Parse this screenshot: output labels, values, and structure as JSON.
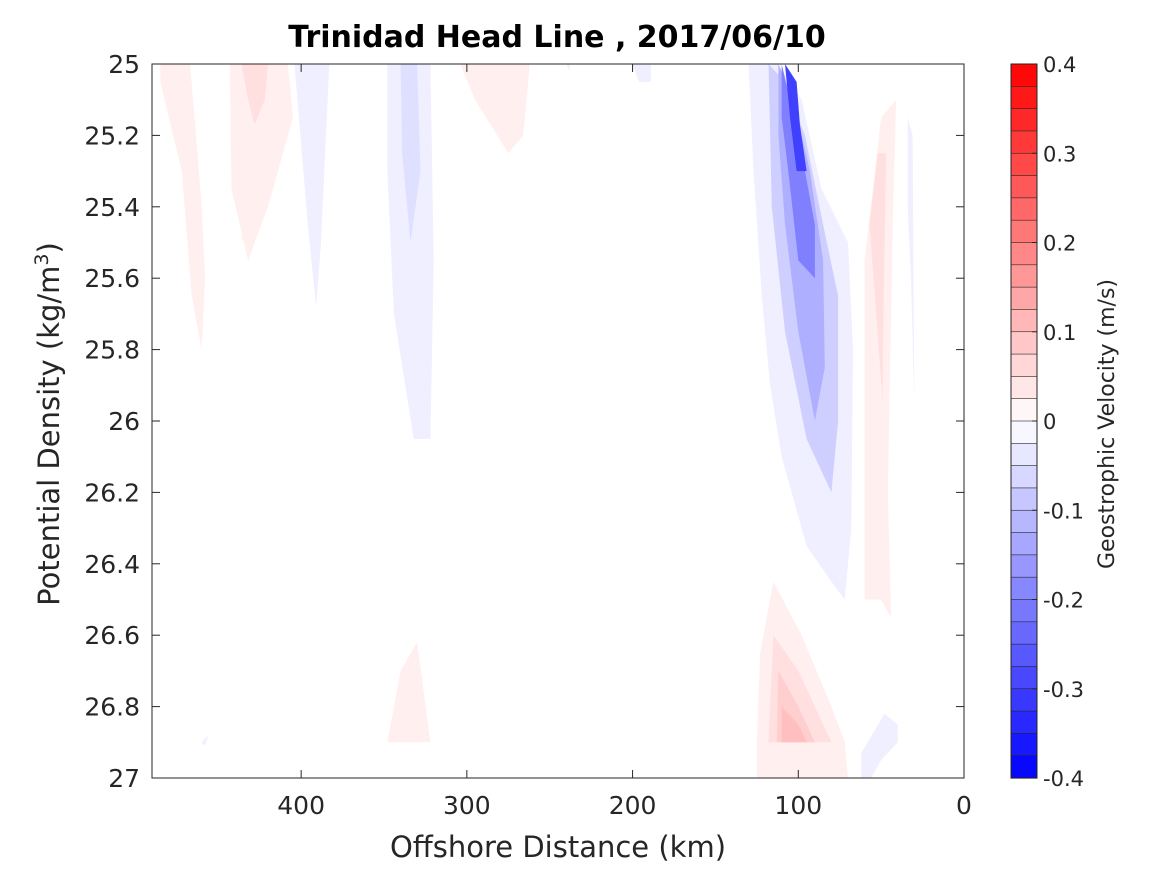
{
  "chart_data": {
    "type": "heatmap",
    "title": "Trinidad Head Line , 2017/06/10",
    "xlabel": "Offshore Distance (km)",
    "ylabel_main": "Potential Density (kg/m",
    "ylabel_sup": "3",
    "ylabel_close": ")",
    "xlim": [
      490,
      0
    ],
    "ylim": [
      25,
      27
    ],
    "x_ticks": [
      400,
      300,
      200,
      100,
      0
    ],
    "x_tick_labels": [
      "400",
      "300",
      "200",
      "100",
      "0"
    ],
    "y_ticks": [
      25,
      25.2,
      25.4,
      25.6,
      25.8,
      26,
      26.2,
      26.4,
      26.6,
      26.8,
      27
    ],
    "y_tick_labels": [
      "25",
      "25.2",
      "25.4",
      "25.6",
      "25.8",
      "26",
      "26.2",
      "26.4",
      "26.6",
      "26.8",
      "27"
    ],
    "y_reversed": true,
    "colorbar": {
      "label": "Geostrophic Velocity (m/s)",
      "range": [
        -0.4,
        0.4
      ],
      "step": 0.025,
      "ticks": [
        0.4,
        0.3,
        0.2,
        0.1,
        0,
        -0.1,
        -0.2,
        -0.3,
        -0.4
      ],
      "tick_labels": [
        "0.4",
        "0.3",
        "0.2",
        "0.1",
        "0",
        "-0.1",
        "-0.2",
        "-0.3",
        "-0.4"
      ],
      "colormap": "blue-white-red"
    },
    "features": [
      {
        "kind": "positive",
        "level": 0.025,
        "points": [
          [
            485,
            25
          ],
          [
            467,
            25
          ],
          [
            460,
            25.4
          ],
          [
            458,
            25.6
          ],
          [
            460,
            25.8
          ],
          [
            466,
            25.65
          ],
          [
            472,
            25.3
          ],
          [
            485,
            25.05
          ]
        ]
      },
      {
        "kind": "positive",
        "level": 0.025,
        "points": [
          [
            435,
            25
          ],
          [
            415,
            25
          ],
          [
            428,
            25.35
          ],
          [
            436,
            25.5
          ]
        ]
      },
      {
        "kind": "positive",
        "level": 0.025,
        "points": [
          [
            443,
            25
          ],
          [
            408,
            25
          ],
          [
            405,
            25.15
          ],
          [
            420,
            25.4
          ],
          [
            432,
            25.55
          ],
          [
            442,
            25.35
          ]
        ]
      },
      {
        "kind": "positive",
        "level": 0.05,
        "points": [
          [
            436,
            25
          ],
          [
            420,
            25
          ],
          [
            422,
            25.1
          ],
          [
            428,
            25.17
          ],
          [
            432,
            25.1
          ]
        ]
      },
      {
        "kind": "negative",
        "level": -0.025,
        "points": [
          [
            404,
            25
          ],
          [
            383,
            25
          ],
          [
            388,
            25.5
          ],
          [
            391,
            25.68
          ],
          [
            396,
            25.45
          ]
        ]
      },
      {
        "kind": "negative",
        "level": -0.025,
        "points": [
          [
            348,
            25
          ],
          [
            322,
            25
          ],
          [
            320,
            25.55
          ],
          [
            322,
            26.05
          ],
          [
            332,
            26.05
          ],
          [
            344,
            25.7
          ],
          [
            348,
            25.3
          ]
        ]
      },
      {
        "kind": "negative",
        "level": -0.05,
        "points": [
          [
            340,
            25
          ],
          [
            330,
            25
          ],
          [
            328,
            25.3
          ],
          [
            334,
            25.5
          ],
          [
            339,
            25.25
          ]
        ]
      },
      {
        "kind": "positive",
        "level": 0.025,
        "points": [
          [
            304,
            25
          ],
          [
            262,
            25
          ],
          [
            266,
            25.2
          ],
          [
            275,
            25.25
          ],
          [
            295,
            25.1
          ]
        ]
      },
      {
        "kind": "negative",
        "level": -0.025,
        "points": [
          [
            240,
            25
          ],
          [
            238,
            25
          ],
          [
            238,
            25.02
          ]
        ]
      },
      {
        "kind": "negative",
        "level": -0.025,
        "points": [
          [
            200,
            25
          ],
          [
            189,
            25
          ],
          [
            189,
            25.05
          ],
          [
            196,
            25.05
          ]
        ]
      },
      {
        "kind": "negative",
        "level": -0.025,
        "points": [
          [
            130,
            25
          ],
          [
            112,
            25
          ],
          [
            98,
            25.1
          ],
          [
            86,
            25.35
          ],
          [
            70,
            25.5
          ],
          [
            67,
            25.8
          ],
          [
            68,
            26.3
          ],
          [
            72,
            26.5
          ],
          [
            80,
            26.45
          ],
          [
            95,
            26.35
          ],
          [
            110,
            26.1
          ],
          [
            117,
            25.9
          ],
          [
            122,
            25.65
          ],
          [
            127,
            25.3
          ]
        ]
      },
      {
        "kind": "negative",
        "level": -0.075,
        "points": [
          [
            118,
            25
          ],
          [
            108,
            25.05
          ],
          [
            96,
            25.2
          ],
          [
            85,
            25.45
          ],
          [
            76,
            25.65
          ],
          [
            76,
            26.0
          ],
          [
            80,
            26.2
          ],
          [
            95,
            26.05
          ],
          [
            108,
            25.75
          ],
          [
            116,
            25.4
          ]
        ]
      },
      {
        "kind": "negative",
        "level": -0.125,
        "points": [
          [
            112,
            25
          ],
          [
            103,
            25.1
          ],
          [
            93,
            25.3
          ],
          [
            85,
            25.55
          ],
          [
            84,
            25.85
          ],
          [
            90,
            26.0
          ],
          [
            100,
            25.75
          ],
          [
            108,
            25.45
          ],
          [
            112,
            25.2
          ]
        ]
      },
      {
        "kind": "negative",
        "level": -0.2,
        "points": [
          [
            110,
            25
          ],
          [
            100,
            25.2
          ],
          [
            90,
            25.45
          ],
          [
            90,
            25.6
          ],
          [
            100,
            25.55
          ],
          [
            106,
            25.3
          ],
          [
            110,
            25.15
          ]
        ]
      },
      {
        "kind": "negative",
        "level": -0.3,
        "points": [
          [
            108,
            25
          ],
          [
            101,
            25.05
          ],
          [
            99,
            25.17
          ],
          [
            95,
            25.3
          ],
          [
            101,
            25.3
          ],
          [
            105,
            25.15
          ]
        ]
      },
      {
        "kind": "positive",
        "level": 0.025,
        "points": [
          [
            60,
            25.55
          ],
          [
            50,
            25.15
          ],
          [
            41,
            25.1
          ],
          [
            43,
            25.45
          ],
          [
            46,
            26.2
          ],
          [
            44,
            26.55
          ],
          [
            50,
            26.5
          ],
          [
            60,
            26.5
          ]
        ]
      },
      {
        "kind": "positive",
        "level": 0.05,
        "points": [
          [
            57,
            25.45
          ],
          [
            52,
            25.25
          ],
          [
            47,
            25.25
          ],
          [
            49,
            25.8
          ],
          [
            49,
            25.95
          ],
          [
            53,
            25.7
          ]
        ]
      },
      {
        "kind": "negative",
        "level": -0.025,
        "points": [
          [
            34,
            25.15
          ],
          [
            31,
            25.2
          ],
          [
            30,
            25.95
          ],
          [
            32,
            25.6
          ],
          [
            34,
            25.4
          ]
        ]
      },
      {
        "kind": "positive",
        "level": 0.025,
        "points": [
          [
            125,
            26.9
          ],
          [
            123,
            26.65
          ],
          [
            115,
            26.45
          ],
          [
            98,
            26.6
          ],
          [
            80,
            26.8
          ],
          [
            72,
            26.9
          ],
          [
            70,
            27
          ],
          [
            125,
            27
          ]
        ]
      },
      {
        "kind": "positive",
        "level": 0.05,
        "points": [
          [
            118,
            26.9
          ],
          [
            115,
            26.6
          ],
          [
            100,
            26.7
          ],
          [
            85,
            26.85
          ],
          [
            80,
            26.9
          ]
        ]
      },
      {
        "kind": "positive",
        "level": 0.075,
        "points": [
          [
            113,
            26.9
          ],
          [
            112,
            26.7
          ],
          [
            100,
            26.8
          ],
          [
            90,
            26.9
          ]
        ]
      },
      {
        "kind": "positive",
        "level": 0.1,
        "points": [
          [
            110,
            26.9
          ],
          [
            110,
            26.8
          ],
          [
            100,
            26.85
          ],
          [
            95,
            26.9
          ]
        ]
      },
      {
        "kind": "positive",
        "level": 0.025,
        "points": [
          [
            348,
            26.9
          ],
          [
            340,
            26.7
          ],
          [
            330,
            26.62
          ],
          [
            322,
            26.9
          ]
        ]
      },
      {
        "kind": "negative",
        "level": -0.025,
        "points": [
          [
            62,
            27
          ],
          [
            62,
            26.93
          ],
          [
            48,
            26.82
          ],
          [
            40,
            26.85
          ],
          [
            40,
            26.9
          ],
          [
            50,
            26.95
          ],
          [
            56,
            27
          ]
        ]
      },
      {
        "kind": "negative",
        "level": -0.025,
        "points": [
          [
            460,
            26.9
          ],
          [
            456,
            26.88
          ],
          [
            458,
            26.91
          ]
        ]
      }
    ]
  }
}
